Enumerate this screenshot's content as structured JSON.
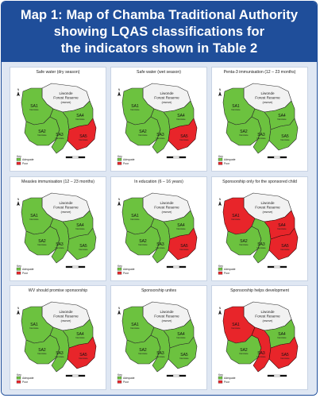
{
  "header": {
    "line1": "Map 1: Map of Chamba Traditional Authority",
    "line2": "showing LQAS classifications for",
    "line3": "the indicators shown in Table 2"
  },
  "colors": {
    "adequate": "#6cc23f",
    "poor": "#e8252a",
    "reserve": "#f2f2f2",
    "header_bg": "#1f4e9a",
    "border": "#1f4e9a"
  },
  "legend": {
    "title": "Key",
    "adequate": "Adequate",
    "poor": "Poor"
  },
  "reserve_label": {
    "line1": "Liwonde",
    "line2": "Forest Reserve",
    "line3": "(reserve)"
  },
  "panels": [
    {
      "title": "Safe water (dry season)",
      "sa1": "adequate",
      "sa2": "adequate",
      "sa3": "adequate",
      "sa4": "adequate",
      "sa5": "poor"
    },
    {
      "title": "Safe water (wet season)",
      "sa1": "adequate",
      "sa2": "adequate",
      "sa3": "adequate",
      "sa4": "adequate",
      "sa5": "poor"
    },
    {
      "title": "Penta-3 immunisation (12 – 23 months)",
      "sa1": "adequate",
      "sa2": "adequate",
      "sa3": "adequate",
      "sa4": "adequate",
      "sa5": "adequate"
    },
    {
      "title": "Measles immunisation (12 – 23 months)",
      "sa1": "adequate",
      "sa2": "adequate",
      "sa3": "adequate",
      "sa4": "adequate",
      "sa5": "adequate"
    },
    {
      "title": "In education (6 – 16 years)",
      "sa1": "adequate",
      "sa2": "adequate",
      "sa3": "adequate",
      "sa4": "adequate",
      "sa5": "poor"
    },
    {
      "title": "Sponsorship only for the sponsored child",
      "sa1": "poor",
      "sa2": "adequate",
      "sa3": "adequate",
      "sa4": "poor",
      "sa5": "poor"
    },
    {
      "title": "WV should promise sponsorship",
      "sa1": "adequate",
      "sa2": "adequate",
      "sa3": "adequate",
      "sa4": "adequate",
      "sa5": "poor"
    },
    {
      "title": "Sponsorship unites",
      "sa1": "adequate",
      "sa2": "adequate",
      "sa3": "adequate",
      "sa4": "adequate",
      "sa5": "adequate"
    },
    {
      "title": "Sponsorship helps development",
      "sa1": "poor",
      "sa2": "adequate",
      "sa3": "poor",
      "sa4": "adequate",
      "sa5": "poor"
    }
  ],
  "area_labels": {
    "sa1": "SA1",
    "sa2": "SA2",
    "sa3": "SA3",
    "sa4": "SA4",
    "sa5": "SA5",
    "sub": "Namitete"
  }
}
